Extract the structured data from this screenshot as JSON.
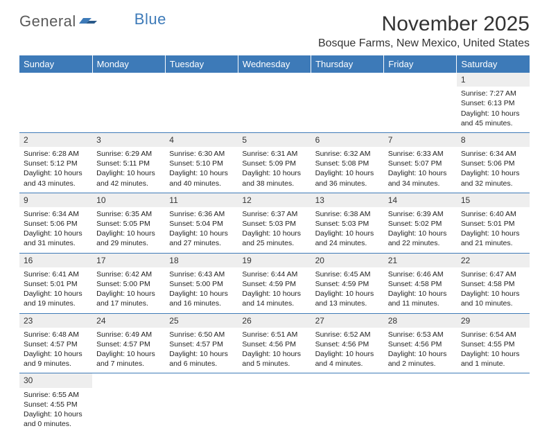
{
  "logo": {
    "text1": "General",
    "text2": "Blue"
  },
  "title": "November 2025",
  "location": "Bosque Farms, New Mexico, United States",
  "colors": {
    "header_bg": "#3d7ab8",
    "header_text": "#ffffff",
    "daynum_bg": "#eeeeee",
    "row_divider": "#3d7ab8",
    "text": "#222222",
    "logo_gray": "#5a5a5a",
    "logo_blue": "#3d7ab8"
  },
  "dayHeaders": [
    "Sunday",
    "Monday",
    "Tuesday",
    "Wednesday",
    "Thursday",
    "Friday",
    "Saturday"
  ],
  "weeks": [
    [
      null,
      null,
      null,
      null,
      null,
      null,
      {
        "d": "1",
        "sunrise": "Sunrise: 7:27 AM",
        "sunset": "Sunset: 6:13 PM",
        "daylight": "Daylight: 10 hours and 45 minutes."
      }
    ],
    [
      {
        "d": "2",
        "sunrise": "Sunrise: 6:28 AM",
        "sunset": "Sunset: 5:12 PM",
        "daylight": "Daylight: 10 hours and 43 minutes."
      },
      {
        "d": "3",
        "sunrise": "Sunrise: 6:29 AM",
        "sunset": "Sunset: 5:11 PM",
        "daylight": "Daylight: 10 hours and 42 minutes."
      },
      {
        "d": "4",
        "sunrise": "Sunrise: 6:30 AM",
        "sunset": "Sunset: 5:10 PM",
        "daylight": "Daylight: 10 hours and 40 minutes."
      },
      {
        "d": "5",
        "sunrise": "Sunrise: 6:31 AM",
        "sunset": "Sunset: 5:09 PM",
        "daylight": "Daylight: 10 hours and 38 minutes."
      },
      {
        "d": "6",
        "sunrise": "Sunrise: 6:32 AM",
        "sunset": "Sunset: 5:08 PM",
        "daylight": "Daylight: 10 hours and 36 minutes."
      },
      {
        "d": "7",
        "sunrise": "Sunrise: 6:33 AM",
        "sunset": "Sunset: 5:07 PM",
        "daylight": "Daylight: 10 hours and 34 minutes."
      },
      {
        "d": "8",
        "sunrise": "Sunrise: 6:34 AM",
        "sunset": "Sunset: 5:06 PM",
        "daylight": "Daylight: 10 hours and 32 minutes."
      }
    ],
    [
      {
        "d": "9",
        "sunrise": "Sunrise: 6:34 AM",
        "sunset": "Sunset: 5:06 PM",
        "daylight": "Daylight: 10 hours and 31 minutes."
      },
      {
        "d": "10",
        "sunrise": "Sunrise: 6:35 AM",
        "sunset": "Sunset: 5:05 PM",
        "daylight": "Daylight: 10 hours and 29 minutes."
      },
      {
        "d": "11",
        "sunrise": "Sunrise: 6:36 AM",
        "sunset": "Sunset: 5:04 PM",
        "daylight": "Daylight: 10 hours and 27 minutes."
      },
      {
        "d": "12",
        "sunrise": "Sunrise: 6:37 AM",
        "sunset": "Sunset: 5:03 PM",
        "daylight": "Daylight: 10 hours and 25 minutes."
      },
      {
        "d": "13",
        "sunrise": "Sunrise: 6:38 AM",
        "sunset": "Sunset: 5:03 PM",
        "daylight": "Daylight: 10 hours and 24 minutes."
      },
      {
        "d": "14",
        "sunrise": "Sunrise: 6:39 AM",
        "sunset": "Sunset: 5:02 PM",
        "daylight": "Daylight: 10 hours and 22 minutes."
      },
      {
        "d": "15",
        "sunrise": "Sunrise: 6:40 AM",
        "sunset": "Sunset: 5:01 PM",
        "daylight": "Daylight: 10 hours and 21 minutes."
      }
    ],
    [
      {
        "d": "16",
        "sunrise": "Sunrise: 6:41 AM",
        "sunset": "Sunset: 5:01 PM",
        "daylight": "Daylight: 10 hours and 19 minutes."
      },
      {
        "d": "17",
        "sunrise": "Sunrise: 6:42 AM",
        "sunset": "Sunset: 5:00 PM",
        "daylight": "Daylight: 10 hours and 17 minutes."
      },
      {
        "d": "18",
        "sunrise": "Sunrise: 6:43 AM",
        "sunset": "Sunset: 5:00 PM",
        "daylight": "Daylight: 10 hours and 16 minutes."
      },
      {
        "d": "19",
        "sunrise": "Sunrise: 6:44 AM",
        "sunset": "Sunset: 4:59 PM",
        "daylight": "Daylight: 10 hours and 14 minutes."
      },
      {
        "d": "20",
        "sunrise": "Sunrise: 6:45 AM",
        "sunset": "Sunset: 4:59 PM",
        "daylight": "Daylight: 10 hours and 13 minutes."
      },
      {
        "d": "21",
        "sunrise": "Sunrise: 6:46 AM",
        "sunset": "Sunset: 4:58 PM",
        "daylight": "Daylight: 10 hours and 11 minutes."
      },
      {
        "d": "22",
        "sunrise": "Sunrise: 6:47 AM",
        "sunset": "Sunset: 4:58 PM",
        "daylight": "Daylight: 10 hours and 10 minutes."
      }
    ],
    [
      {
        "d": "23",
        "sunrise": "Sunrise: 6:48 AM",
        "sunset": "Sunset: 4:57 PM",
        "daylight": "Daylight: 10 hours and 9 minutes."
      },
      {
        "d": "24",
        "sunrise": "Sunrise: 6:49 AM",
        "sunset": "Sunset: 4:57 PM",
        "daylight": "Daylight: 10 hours and 7 minutes."
      },
      {
        "d": "25",
        "sunrise": "Sunrise: 6:50 AM",
        "sunset": "Sunset: 4:57 PM",
        "daylight": "Daylight: 10 hours and 6 minutes."
      },
      {
        "d": "26",
        "sunrise": "Sunrise: 6:51 AM",
        "sunset": "Sunset: 4:56 PM",
        "daylight": "Daylight: 10 hours and 5 minutes."
      },
      {
        "d": "27",
        "sunrise": "Sunrise: 6:52 AM",
        "sunset": "Sunset: 4:56 PM",
        "daylight": "Daylight: 10 hours and 4 minutes."
      },
      {
        "d": "28",
        "sunrise": "Sunrise: 6:53 AM",
        "sunset": "Sunset: 4:56 PM",
        "daylight": "Daylight: 10 hours and 2 minutes."
      },
      {
        "d": "29",
        "sunrise": "Sunrise: 6:54 AM",
        "sunset": "Sunset: 4:55 PM",
        "daylight": "Daylight: 10 hours and 1 minute."
      }
    ],
    [
      {
        "d": "30",
        "sunrise": "Sunrise: 6:55 AM",
        "sunset": "Sunset: 4:55 PM",
        "daylight": "Daylight: 10 hours and 0 minutes."
      },
      null,
      null,
      null,
      null,
      null,
      null
    ]
  ]
}
